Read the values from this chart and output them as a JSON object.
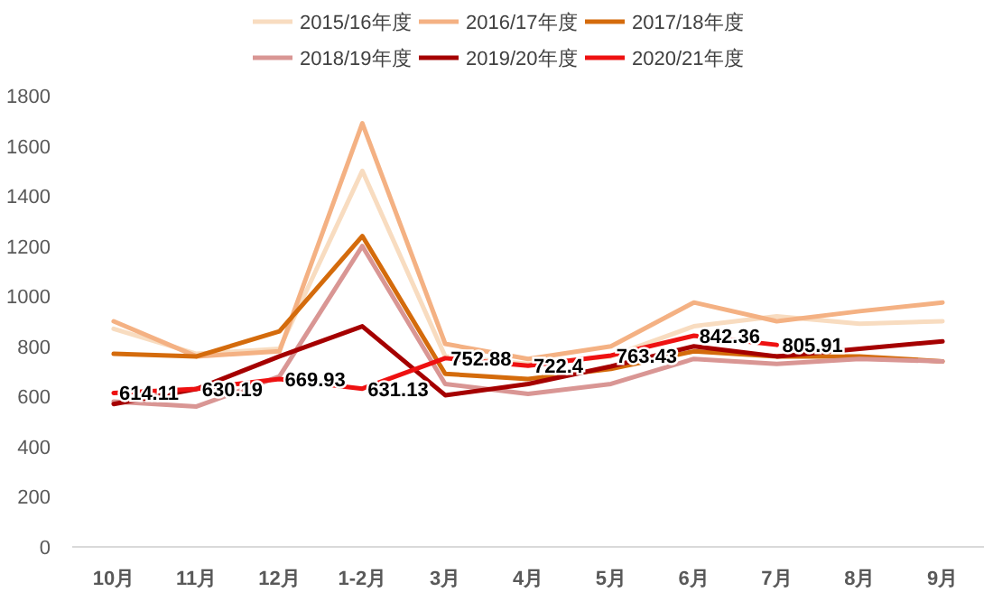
{
  "chart_data": {
    "type": "line",
    "categories": [
      "10月",
      "11月",
      "12月",
      "1-2月",
      "3月",
      "4月",
      "5月",
      "6月",
      "7月",
      "8月",
      "9月"
    ],
    "ylim": [
      0,
      1800
    ],
    "yticks": [
      0,
      200,
      400,
      600,
      800,
      1000,
      1200,
      1400,
      1600,
      1800
    ],
    "grid": false,
    "legend": "top",
    "marker": "none",
    "line_style": "solid",
    "series": [
      {
        "name": "2015/16年度",
        "color": "#f8dcc0",
        "values": [
          870,
          770,
          790,
          1500,
          760,
          730,
          760,
          880,
          920,
          890,
          900
        ]
      },
      {
        "name": "2016/17年度",
        "color": "#f4b183",
        "values": [
          900,
          760,
          780,
          1690,
          810,
          750,
          800,
          975,
          900,
          940,
          975
        ]
      },
      {
        "name": "2017/18年度",
        "color": "#d46b0c",
        "values": [
          770,
          760,
          860,
          1240,
          690,
          670,
          710,
          780,
          760,
          760,
          740
        ]
      },
      {
        "name": "2018/19年度",
        "color": "#d99694",
        "values": [
          580,
          560,
          680,
          1200,
          650,
          610,
          650,
          750,
          730,
          750,
          740
        ]
      },
      {
        "name": "2019/20年度",
        "color": "#a50000",
        "values": [
          570,
          630,
          760,
          880,
          605,
          650,
          720,
          800,
          760,
          790,
          820
        ]
      },
      {
        "name": "2020/21年度",
        "color": "#ee1111",
        "values": [
          614.11,
          630.19,
          669.93,
          631.13,
          752.88,
          722.4,
          763.43,
          842.36,
          805.91,
          null,
          null
        ],
        "value_labels": [
          "614.11",
          "630.19",
          "669.93",
          "631.13",
          "752.88",
          "722.4",
          "763.43",
          "842.36",
          "805.91",
          null,
          null
        ]
      }
    ]
  }
}
